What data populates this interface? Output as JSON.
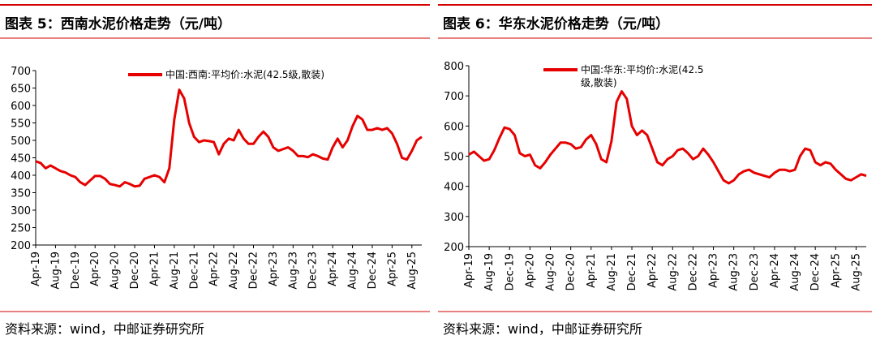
{
  "chart_data": [
    {
      "type": "line",
      "title": "图表 5：西南水泥价格走势（元/吨）",
      "source": "资料来源：wind，中邮证券研究所",
      "categories": [
        "Apr-19",
        null,
        null,
        null,
        "Aug-19",
        null,
        null,
        null,
        "Dec-19",
        null,
        null,
        null,
        "Apr-20",
        null,
        null,
        null,
        "Aug-20",
        null,
        null,
        null,
        "Dec-20",
        null,
        null,
        null,
        "Apr-21",
        null,
        null,
        null,
        "Aug-21",
        null,
        null,
        null,
        "Dec-21",
        null,
        null,
        null,
        "Apr-22",
        null,
        null,
        null,
        "Aug-22",
        null,
        null,
        null,
        "Dec-22",
        null,
        null,
        null,
        "Apr-23",
        null,
        null,
        null,
        "Aug-23",
        null,
        null,
        null,
        "Dec-23",
        null,
        null,
        null,
        "Apr-24",
        null,
        null,
        null,
        "Aug-24",
        null,
        null,
        null,
        "Dec-24",
        null,
        null,
        null,
        "Apr-25",
        null,
        null,
        null,
        "Aug-25",
        null,
        null
      ],
      "series": [
        {
          "name": "中国:西南:平均价:水泥(42.5级,散装)",
          "color": "#e60000",
          "values": [
            440,
            435,
            420,
            428,
            420,
            412,
            408,
            400,
            395,
            380,
            372,
            385,
            398,
            398,
            390,
            375,
            372,
            368,
            380,
            375,
            368,
            370,
            390,
            395,
            400,
            395,
            380,
            420,
            560,
            645,
            620,
            550,
            510,
            495,
            500,
            498,
            495,
            460,
            490,
            505,
            500,
            530,
            505,
            490,
            490,
            510,
            525,
            510,
            480,
            470,
            475,
            480,
            470,
            455,
            455,
            452,
            460,
            455,
            448,
            445,
            480,
            505,
            480,
            500,
            540,
            570,
            560,
            530,
            530,
            535,
            530,
            535,
            520,
            490,
            450,
            445,
            470,
            500,
            510
          ]
        }
      ],
      "ylim": [
        200,
        700
      ],
      "yticks": [
        200,
        250,
        300,
        350,
        400,
        450,
        500,
        550,
        600,
        650,
        700
      ]
    },
    {
      "type": "line",
      "title": "图表 6：华东水泥价格走势（元/吨）",
      "source": "资料来源：wind，中邮证券研究所",
      "categories": [
        "Apr-19",
        null,
        null,
        null,
        "Aug-19",
        null,
        null,
        null,
        "Dec-19",
        null,
        null,
        null,
        "Apr-20",
        null,
        null,
        null,
        "Aug-20",
        null,
        null,
        null,
        "Dec-20",
        null,
        null,
        null,
        "Apr-21",
        null,
        null,
        null,
        "Aug-21",
        null,
        null,
        null,
        "Dec-21",
        null,
        null,
        null,
        "Apr-22",
        null,
        null,
        null,
        "Aug-22",
        null,
        null,
        null,
        "Dec-22",
        null,
        null,
        null,
        "Apr-23",
        null,
        null,
        null,
        "Aug-23",
        null,
        null,
        null,
        "Dec-23",
        null,
        null,
        null,
        "Apr-24",
        null,
        null,
        null,
        "Aug-24",
        null,
        null,
        null,
        "Dec-24",
        null,
        null,
        null,
        "Apr-25",
        null,
        null,
        null,
        "Aug-25",
        null,
        null
      ],
      "series": [
        {
          "name": "中国:华东:平均价:水泥(42.5级,散装)",
          "color": "#e60000",
          "values": [
            505,
            515,
            500,
            485,
            490,
            520,
            560,
            595,
            590,
            570,
            510,
            500,
            505,
            470,
            460,
            480,
            505,
            525,
            545,
            545,
            540,
            525,
            530,
            555,
            570,
            540,
            490,
            480,
            550,
            680,
            715,
            690,
            600,
            570,
            585,
            570,
            525,
            480,
            470,
            490,
            500,
            520,
            525,
            510,
            490,
            500,
            525,
            505,
            480,
            450,
            420,
            410,
            420,
            440,
            450,
            455,
            445,
            440,
            435,
            430,
            445,
            455,
            455,
            450,
            455,
            500,
            525,
            520,
            480,
            470,
            480,
            475,
            455,
            440,
            425,
            420,
            430,
            440,
            435
          ]
        }
      ],
      "ylim": [
        200,
        800
      ],
      "yticks": [
        200,
        300,
        400,
        500,
        600,
        700,
        800
      ]
    }
  ]
}
